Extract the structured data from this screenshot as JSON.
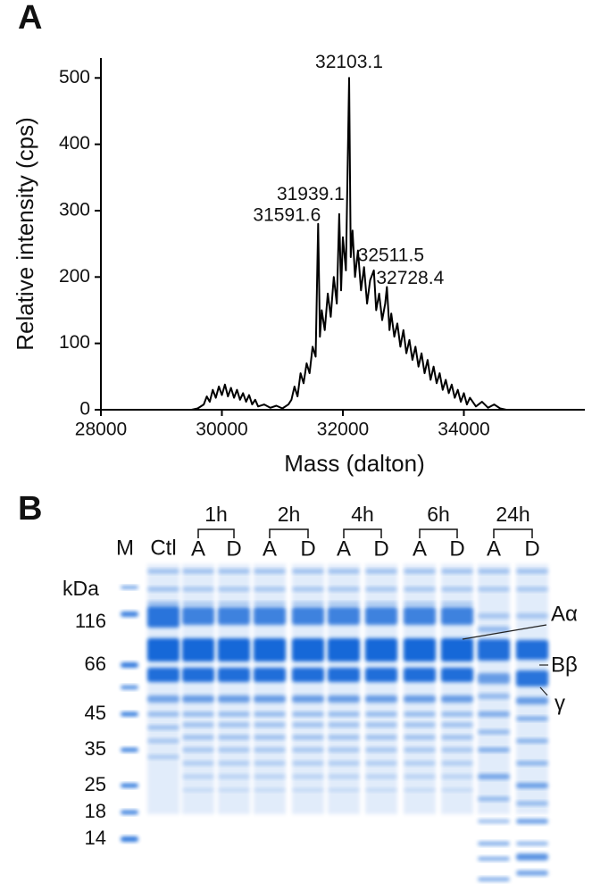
{
  "panel_labels": [
    "A",
    "B"
  ],
  "chart_data": {
    "type": "line",
    "xlabel": "Mass (dalton)",
    "ylabel": "Relative intensity (cps)",
    "x": [
      28000,
      28500,
      29000,
      29500,
      29600,
      29700,
      29750,
      29800,
      29850,
      29900,
      29950,
      30000,
      30050,
      30100,
      30150,
      30200,
      30250,
      30300,
      30350,
      30400,
      30450,
      30500,
      30550,
      30600,
      30700,
      30800,
      30900,
      31000,
      31100,
      31150,
      31200,
      31250,
      31300,
      31350,
      31400,
      31450,
      31500,
      31550,
      31591.6,
      31620,
      31650,
      31700,
      31750,
      31800,
      31850,
      31900,
      31939.1,
      31970,
      32000,
      32050,
      32103.1,
      32130,
      32160,
      32200,
      32250,
      32300,
      32350,
      32400,
      32450,
      32511.5,
      32550,
      32600,
      32650,
      32700,
      32728.4,
      32770,
      32800,
      32850,
      32900,
      32950,
      33000,
      33050,
      33100,
      33150,
      33200,
      33250,
      33300,
      33350,
      33400,
      33450,
      33500,
      33550,
      33600,
      33650,
      33700,
      33750,
      33800,
      33850,
      33900,
      33950,
      34000,
      34050,
      34100,
      34200,
      34300,
      34400,
      34500,
      34600,
      34700,
      35000,
      35600
    ],
    "series": [
      {
        "color": "#000000",
        "values": [
          0,
          0,
          0,
          0,
          2,
          8,
          20,
          12,
          30,
          18,
          35,
          22,
          38,
          20,
          33,
          18,
          30,
          15,
          25,
          12,
          22,
          8,
          15,
          5,
          8,
          3,
          6,
          2,
          8,
          15,
          35,
          20,
          55,
          40,
          70,
          55,
          95,
          80,
          280,
          110,
          150,
          120,
          175,
          140,
          200,
          160,
          295,
          180,
          260,
          210,
          500,
          230,
          270,
          200,
          240,
          180,
          215,
          160,
          195,
          210,
          150,
          175,
          135,
          160,
          185,
          120,
          145,
          110,
          130,
          95,
          120,
          85,
          105,
          75,
          95,
          65,
          85,
          55,
          75,
          45,
          65,
          40,
          55,
          30,
          45,
          25,
          38,
          18,
          30,
          12,
          25,
          8,
          18,
          5,
          12,
          3,
          8,
          2,
          0,
          0,
          0
        ]
      }
    ],
    "xlim": [
      28000,
      36000
    ],
    "ylim": [
      0,
      530
    ],
    "xticks": [
      28000,
      30000,
      32000,
      34000
    ],
    "yticks": [
      0,
      100,
      200,
      300,
      400,
      500
    ],
    "annotations": [
      {
        "x": 32103.1,
        "y": 500
      },
      {
        "x": 31939.1,
        "y": 295
      },
      {
        "x": 31591.6,
        "y": 280
      },
      {
        "x": 32511.5,
        "y": 210
      },
      {
        "x": 32728.4,
        "y": 185
      }
    ]
  },
  "gel": {
    "marker": "M",
    "control": "Ctl",
    "time_points": [
      "1h",
      "2h",
      "4h",
      "6h",
      "24h"
    ],
    "lanes": [
      "A",
      "D"
    ],
    "unit": "kDa",
    "marker_sizes": [
      116,
      66,
      45,
      35,
      25,
      18,
      14
    ],
    "bands": [
      "Aα",
      "Bβ",
      "γ"
    ]
  }
}
